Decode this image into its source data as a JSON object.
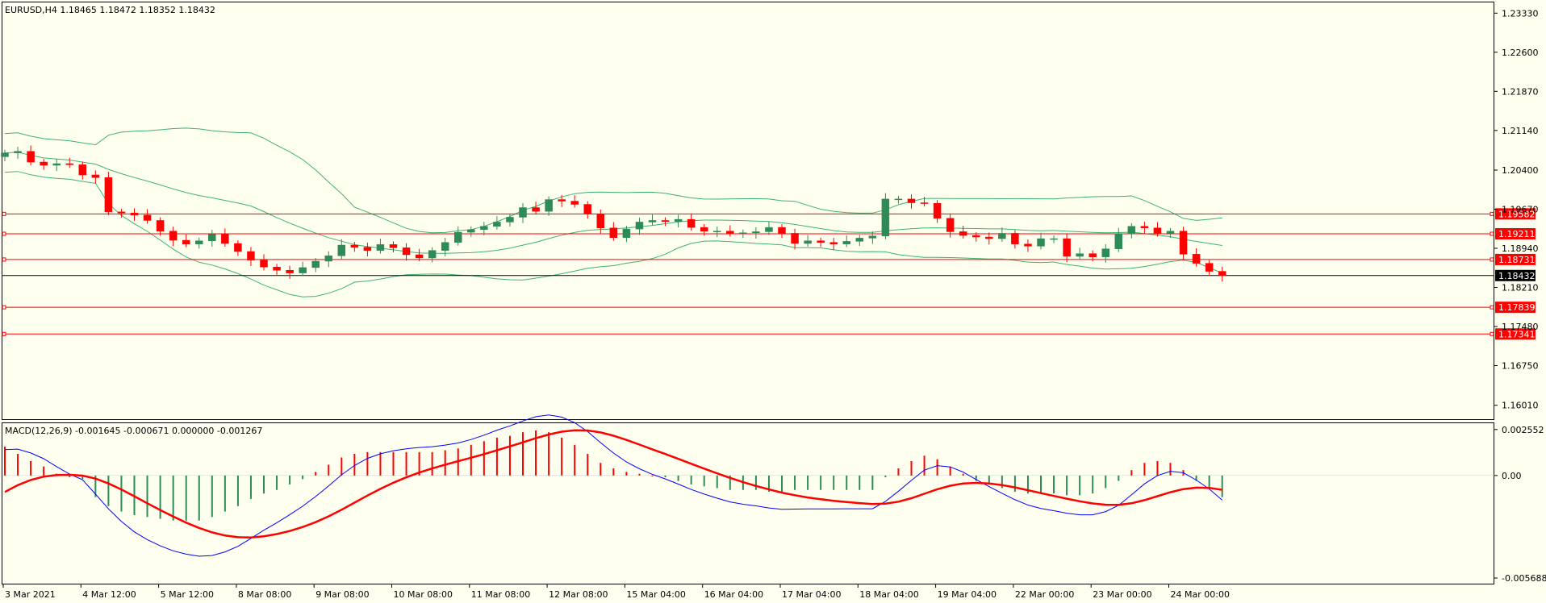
{
  "main_header": "EURUSD,H4  1.18465 1.18472 1.18352 1.18432",
  "macd_header": "MACD(12,26,9) -0.001645 -0.000671 0.000000 -0.001267",
  "colors": {
    "background": "#fffff0",
    "bull": "#2e8b57",
    "bear": "#ff0000",
    "bollinger": "#3cb371",
    "macd_main": "#0000ff",
    "macd_signal": "#ff0000",
    "level_line": "#ff0000",
    "current_price": "#000000"
  },
  "chart_data": [
    {
      "type": "candlestick",
      "symbol": "EURUSD",
      "timeframe": "H4",
      "ylim": [
        1.1575,
        1.2353
      ],
      "y_ticks": [
        "1.23330",
        "1.22600",
        "1.21870",
        "1.21140",
        "1.20400",
        "1.19670",
        "1.18940",
        "1.18210",
        "1.17480",
        "1.16750",
        "1.16010"
      ],
      "x_labels": [
        "3 Mar 2021",
        "4 Mar 12:00",
        "5 Mar 12:00",
        "8 Mar 08:00",
        "9 Mar 08:00",
        "10 Mar 08:00",
        "11 Mar 08:00",
        "12 Mar 08:00",
        "15 Mar 04:00",
        "16 Mar 04:00",
        "17 Mar 04:00",
        "18 Mar 04:00",
        "19 Mar 04:00",
        "22 Mar 00:00",
        "23 Mar 00:00",
        "24 Mar 00:00"
      ],
      "closes": [
        1.2072,
        1.2075,
        1.2055,
        1.2049,
        1.2052,
        1.205,
        1.2031,
        1.2026,
        1.1962,
        1.196,
        1.1956,
        1.1946,
        1.1926,
        1.1909,
        1.1902,
        1.1908,
        1.192,
        1.1903,
        1.1888,
        1.1872,
        1.1859,
        1.1853,
        1.1848,
        1.1858,
        1.187,
        1.188,
        1.19,
        1.1896,
        1.189,
        1.1901,
        1.1895,
        1.1882,
        1.1876,
        1.189,
        1.1905,
        1.1924,
        1.1929,
        1.1935,
        1.1943,
        1.1952,
        1.197,
        1.1963,
        1.1985,
        1.1982,
        1.1976,
        1.1958,
        1.1932,
        1.1914,
        1.193,
        1.1943,
        1.1946,
        1.1944,
        1.1948,
        1.1933,
        1.1926,
        1.1926,
        1.1922,
        1.1923,
        1.1925,
        1.1933,
        1.1922,
        1.1903,
        1.1908,
        1.1905,
        1.1902,
        1.1907,
        1.1913,
        1.1917,
        1.1986,
        1.1986,
        1.1979,
        1.1978,
        1.195,
        1.1925,
        1.1918,
        1.1915,
        1.1912,
        1.1922,
        1.1902,
        1.1898,
        1.1912,
        1.1912,
        1.1879,
        1.1884,
        1.1878,
        1.1893,
        1.1921,
        1.1935,
        1.1932,
        1.1922,
        1.1926,
        1.1883,
        1.1866,
        1.1851,
        1.1843
      ],
      "bollinger_bands": "20-period, std 2 (computed from closes)",
      "levels": [
        {
          "price": 1.19582,
          "label": "1.19582"
        },
        {
          "price": 1.19211,
          "label": "1.19211"
        },
        {
          "price": 1.18731,
          "label": "1.18731"
        },
        {
          "price": 1.17839,
          "label": "1.17839"
        },
        {
          "price": 1.17341,
          "label": "1.17341"
        }
      ],
      "current_price": {
        "price": 1.18432,
        "label": "1.18432"
      }
    },
    {
      "type": "histogram+line",
      "name": "MACD(12,26,9)",
      "ylim": [
        -0.006,
        0.0029
      ],
      "y_ticks": [
        "0.002552",
        "0.00",
        "-0.005688"
      ],
      "histogram": [
        0.0016,
        0.0012,
        0.0008,
        0.0005,
        0.0001,
        -0.0001,
        -0.0002,
        -0.0012,
        -0.0017,
        -0.002,
        -0.0022,
        -0.0023,
        -0.0024,
        -0.0025,
        -0.0025,
        -0.0025,
        -0.0023,
        -0.002,
        -0.0017,
        -0.0013,
        -0.001,
        -0.0008,
        -0.0005,
        -0.0002,
        0.0002,
        0.0006,
        0.001,
        0.0012,
        0.0013,
        0.0013,
        0.0013,
        0.0013,
        0.0013,
        0.0013,
        0.0014,
        0.0015,
        0.0017,
        0.0019,
        0.0021,
        0.0022,
        0.0024,
        0.0025,
        0.0024,
        0.0021,
        0.0017,
        0.0012,
        0.0007,
        0.0004,
        0.0002,
        0.0001,
        0.0,
        -0.0001,
        -0.0003,
        -0.0005,
        -0.0006,
        -0.0007,
        -0.0008,
        -0.0008,
        -0.0008,
        -0.0009,
        -0.0009,
        -0.0008,
        -0.0008,
        -0.0008,
        -0.0008,
        -0.0008,
        -0.0008,
        -0.0008,
        -0.0001,
        0.0004,
        0.0008,
        0.0011,
        0.0009,
        0.0005,
        0.0001,
        -0.0003,
        -0.0005,
        -0.0007,
        -0.0009,
        -0.001,
        -0.001,
        -0.001,
        -0.0011,
        -0.0011,
        -0.001,
        -0.0007,
        -0.0003,
        0.0003,
        0.0007,
        0.0008,
        0.0007,
        0.0003,
        -0.0003,
        -0.0007,
        -0.0012
      ]
    }
  ]
}
